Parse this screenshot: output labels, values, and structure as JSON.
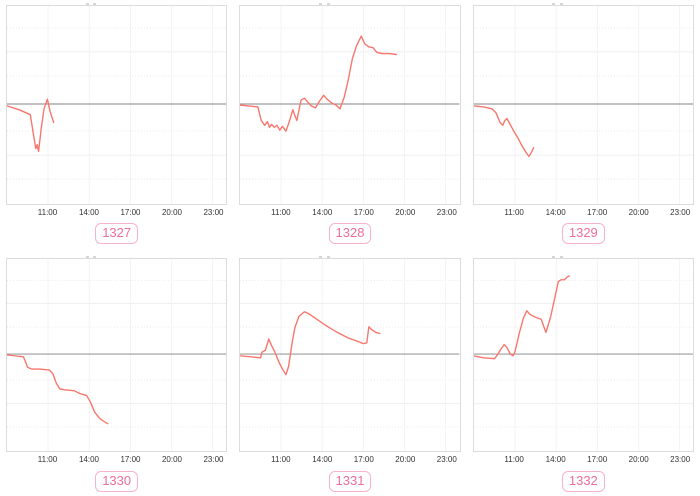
{
  "page": {
    "background": "#ffffff",
    "description": "grid of six intraday change sparkline panels with id badges"
  },
  "style": {
    "line_color": "#f8766d",
    "zero_line_color": "#9c9c9c",
    "panel_border_color": "#dcdcdc",
    "grid_solid_color": "#efefef",
    "grid_dotted_color": "#e9e9e9",
    "grid_vertical_color": "#f3f3f3",
    "badge_border_color": "#f9b3c8",
    "badge_text_color": "#ee6d99",
    "tick_label_color": "#333333"
  },
  "x_tick_hours": [
    11,
    14,
    17,
    20,
    23
  ],
  "chart_data": [
    {
      "id": "1327",
      "type": "line",
      "title": "",
      "x_ticks": [
        "11:00",
        "14:00",
        "17:00",
        "20:00",
        "23:00"
      ],
      "x_range_hours": [
        8,
        24
      ],
      "ylim": [
        -1,
        1
      ],
      "baseline": 0,
      "y_unit": "relative change (no y-axis labels visible)",
      "points": [
        [
          8.0,
          -0.02
        ],
        [
          8.9,
          -0.06
        ],
        [
          9.7,
          -0.11
        ],
        [
          9.95,
          -0.33
        ],
        [
          10.1,
          -0.46
        ],
        [
          10.2,
          -0.42
        ],
        [
          10.3,
          -0.49
        ],
        [
          10.5,
          -0.25
        ],
        [
          10.7,
          -0.05
        ],
        [
          10.95,
          0.05
        ],
        [
          11.15,
          -0.08
        ],
        [
          11.4,
          -0.19
        ]
      ]
    },
    {
      "id": "1328",
      "type": "line",
      "title": "",
      "x_ticks": [
        "11:00",
        "14:00",
        "17:00",
        "20:00",
        "23:00"
      ],
      "x_range_hours": [
        8,
        24
      ],
      "ylim": [
        -1,
        1
      ],
      "baseline": 0,
      "y_unit": "relative change (no y-axis labels visible)",
      "points": [
        [
          8.0,
          -0.01
        ],
        [
          8.6,
          -0.02
        ],
        [
          9.3,
          -0.03
        ],
        [
          9.55,
          -0.17
        ],
        [
          9.8,
          -0.22
        ],
        [
          10.0,
          -0.18
        ],
        [
          10.15,
          -0.24
        ],
        [
          10.3,
          -0.21
        ],
        [
          10.5,
          -0.24
        ],
        [
          10.7,
          -0.22
        ],
        [
          10.9,
          -0.27
        ],
        [
          11.1,
          -0.23
        ],
        [
          11.35,
          -0.28
        ],
        [
          11.6,
          -0.18
        ],
        [
          11.85,
          -0.06
        ],
        [
          12.0,
          -0.12
        ],
        [
          12.15,
          -0.17
        ],
        [
          12.45,
          0.04
        ],
        [
          12.7,
          0.06
        ],
        [
          12.95,
          0.02
        ],
        [
          13.2,
          -0.02
        ],
        [
          13.5,
          -0.04
        ],
        [
          13.8,
          0.03
        ],
        [
          14.1,
          0.09
        ],
        [
          14.35,
          0.05
        ],
        [
          14.7,
          0.01
        ],
        [
          15.0,
          -0.01
        ],
        [
          15.3,
          -0.05
        ],
        [
          15.6,
          0.07
        ],
        [
          15.9,
          0.25
        ],
        [
          16.2,
          0.47
        ],
        [
          16.5,
          0.6
        ],
        [
          16.85,
          0.7
        ],
        [
          17.1,
          0.62
        ],
        [
          17.4,
          0.59
        ],
        [
          17.7,
          0.58
        ],
        [
          18.0,
          0.53
        ],
        [
          18.4,
          0.52
        ],
        [
          18.9,
          0.52
        ],
        [
          19.4,
          0.51
        ]
      ]
    },
    {
      "id": "1329",
      "type": "line",
      "title": "",
      "x_ticks": [
        "11:00",
        "14:00",
        "17:00",
        "20:00",
        "23:00"
      ],
      "x_range_hours": [
        8,
        24
      ],
      "ylim": [
        -1,
        1
      ],
      "baseline": 0,
      "y_unit": "relative change (no y-axis labels visible)",
      "points": [
        [
          8.0,
          -0.02
        ],
        [
          8.7,
          -0.03
        ],
        [
          9.3,
          -0.05
        ],
        [
          9.6,
          -0.09
        ],
        [
          9.9,
          -0.19
        ],
        [
          10.1,
          -0.22
        ],
        [
          10.25,
          -0.17
        ],
        [
          10.4,
          -0.15
        ],
        [
          10.6,
          -0.2
        ],
        [
          10.9,
          -0.28
        ],
        [
          11.2,
          -0.35
        ],
        [
          11.5,
          -0.43
        ],
        [
          11.8,
          -0.5
        ],
        [
          12.0,
          -0.54
        ],
        [
          12.15,
          -0.51
        ],
        [
          12.35,
          -0.45
        ]
      ]
    },
    {
      "id": "1330",
      "type": "line",
      "title": "",
      "x_ticks": [
        "11:00",
        "14:00",
        "17:00",
        "20:00",
        "23:00"
      ],
      "x_range_hours": [
        8,
        24
      ],
      "ylim": [
        -1,
        1
      ],
      "baseline": 0,
      "y_unit": "relative change (no y-axis labels visible)",
      "points": [
        [
          8.0,
          -0.01
        ],
        [
          8.6,
          -0.02
        ],
        [
          9.2,
          -0.03
        ],
        [
          9.35,
          -0.08
        ],
        [
          9.5,
          -0.14
        ],
        [
          9.8,
          -0.16
        ],
        [
          10.4,
          -0.16
        ],
        [
          11.1,
          -0.17
        ],
        [
          11.35,
          -0.21
        ],
        [
          11.6,
          -0.31
        ],
        [
          11.85,
          -0.37
        ],
        [
          12.2,
          -0.38
        ],
        [
          12.9,
          -0.39
        ],
        [
          13.3,
          -0.42
        ],
        [
          13.8,
          -0.44
        ],
        [
          14.05,
          -0.5
        ],
        [
          14.4,
          -0.62
        ],
        [
          14.8,
          -0.69
        ],
        [
          15.1,
          -0.72
        ],
        [
          15.35,
          -0.74
        ]
      ]
    },
    {
      "id": "1331",
      "type": "line",
      "title": "",
      "x_ticks": [
        "11:00",
        "14:00",
        "17:00",
        "20:00",
        "23:00"
      ],
      "x_range_hours": [
        8,
        24
      ],
      "ylim": [
        -1,
        1
      ],
      "baseline": 0,
      "y_unit": "relative change (no y-axis labels visible)",
      "points": [
        [
          8.0,
          -0.02
        ],
        [
          8.8,
          -0.03
        ],
        [
          9.5,
          -0.04
        ],
        [
          9.6,
          0.02
        ],
        [
          9.85,
          0.04
        ],
        [
          10.1,
          0.16
        ],
        [
          10.3,
          0.09
        ],
        [
          10.55,
          0.02
        ],
        [
          10.85,
          -0.09
        ],
        [
          11.1,
          -0.16
        ],
        [
          11.35,
          -0.22
        ],
        [
          11.55,
          -0.13
        ],
        [
          11.8,
          0.12
        ],
        [
          12.0,
          0.28
        ],
        [
          12.3,
          0.4
        ],
        [
          12.7,
          0.45
        ],
        [
          13.0,
          0.43
        ],
        [
          13.6,
          0.37
        ],
        [
          14.3,
          0.3
        ],
        [
          15.1,
          0.23
        ],
        [
          15.9,
          0.17
        ],
        [
          16.5,
          0.14
        ],
        [
          17.0,
          0.11
        ],
        [
          17.25,
          0.12
        ],
        [
          17.4,
          0.29
        ],
        [
          17.6,
          0.26
        ],
        [
          17.9,
          0.23
        ],
        [
          18.2,
          0.22
        ]
      ]
    },
    {
      "id": "1332",
      "type": "line",
      "title": "",
      "x_ticks": [
        "11:00",
        "14:00",
        "17:00",
        "20:00",
        "23:00"
      ],
      "x_range_hours": [
        8,
        24
      ],
      "ylim": [
        -1,
        1
      ],
      "baseline": 0,
      "y_unit": "relative change (no y-axis labels visible)",
      "points": [
        [
          8.0,
          -0.02
        ],
        [
          8.7,
          -0.04
        ],
        [
          9.5,
          -0.05
        ],
        [
          9.7,
          -0.01
        ],
        [
          9.95,
          0.05
        ],
        [
          10.2,
          0.1
        ],
        [
          10.4,
          0.07
        ],
        [
          10.65,
          0.0
        ],
        [
          10.85,
          -0.02
        ],
        [
          11.0,
          0.03
        ],
        [
          11.3,
          0.22
        ],
        [
          11.6,
          0.38
        ],
        [
          11.85,
          0.46
        ],
        [
          12.1,
          0.42
        ],
        [
          12.5,
          0.39
        ],
        [
          12.9,
          0.37
        ],
        [
          13.1,
          0.29
        ],
        [
          13.25,
          0.23
        ],
        [
          13.6,
          0.4
        ],
        [
          13.9,
          0.6
        ],
        [
          14.15,
          0.77
        ],
        [
          14.35,
          0.79
        ],
        [
          14.6,
          0.79
        ],
        [
          14.8,
          0.82
        ],
        [
          14.95,
          0.83
        ]
      ]
    }
  ]
}
